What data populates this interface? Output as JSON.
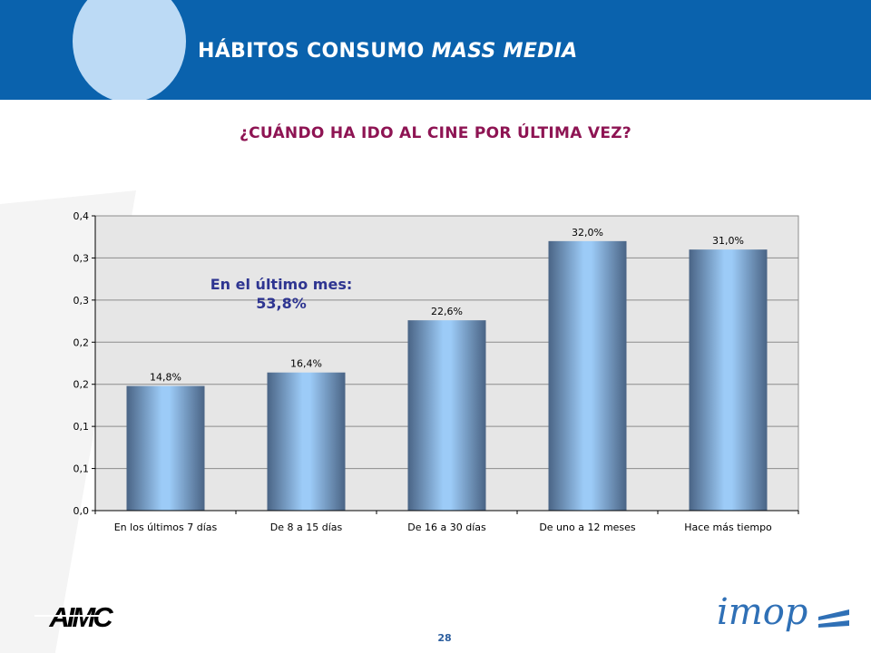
{
  "header": {
    "title_main": "HÁBITOS CONSUMO ",
    "title_italic": "MASS MEDIA"
  },
  "subtitle": "¿CUÁNDO HA IDO AL CINE POR ÚLTIMA VEZ?",
  "callout": {
    "line1": "En el último mes:",
    "line2": "53,8%"
  },
  "logos": {
    "left": "AIMC",
    "right": "imop"
  },
  "page_number": "28",
  "colors": {
    "header_band": "#0a62ad",
    "header_circle": "#bcdaf5",
    "subtitle": "#8e1453",
    "callout": "#2e3591",
    "plot_background": "#e6e6e6",
    "bar_edge": "#4a6485",
    "bar_center": "#9ccbf7"
  },
  "chart_data": {
    "type": "bar",
    "categories": [
      "En los últimos 7 días",
      "De 8 a 15 días",
      "De 16 a 30 días",
      "De uno a 12 meses",
      "Hace más tiempo"
    ],
    "values": [
      0.148,
      0.164,
      0.226,
      0.32,
      0.31
    ],
    "data_labels": [
      "14,8%",
      "16,4%",
      "22,6%",
      "32,0%",
      "31,0%"
    ],
    "y_tick_labels": [
      "0,0",
      "0,1",
      "0,1",
      "0,2",
      "0,2",
      "0,3",
      "0,3",
      "0,4"
    ],
    "y_tick_values": [
      0,
      0.05,
      0.1,
      0.15,
      0.2,
      0.25,
      0.3,
      0.35
    ],
    "ylim": [
      0,
      0.35
    ],
    "grid": true,
    "legend": "none",
    "title": "",
    "xlabel": "",
    "ylabel": ""
  }
}
